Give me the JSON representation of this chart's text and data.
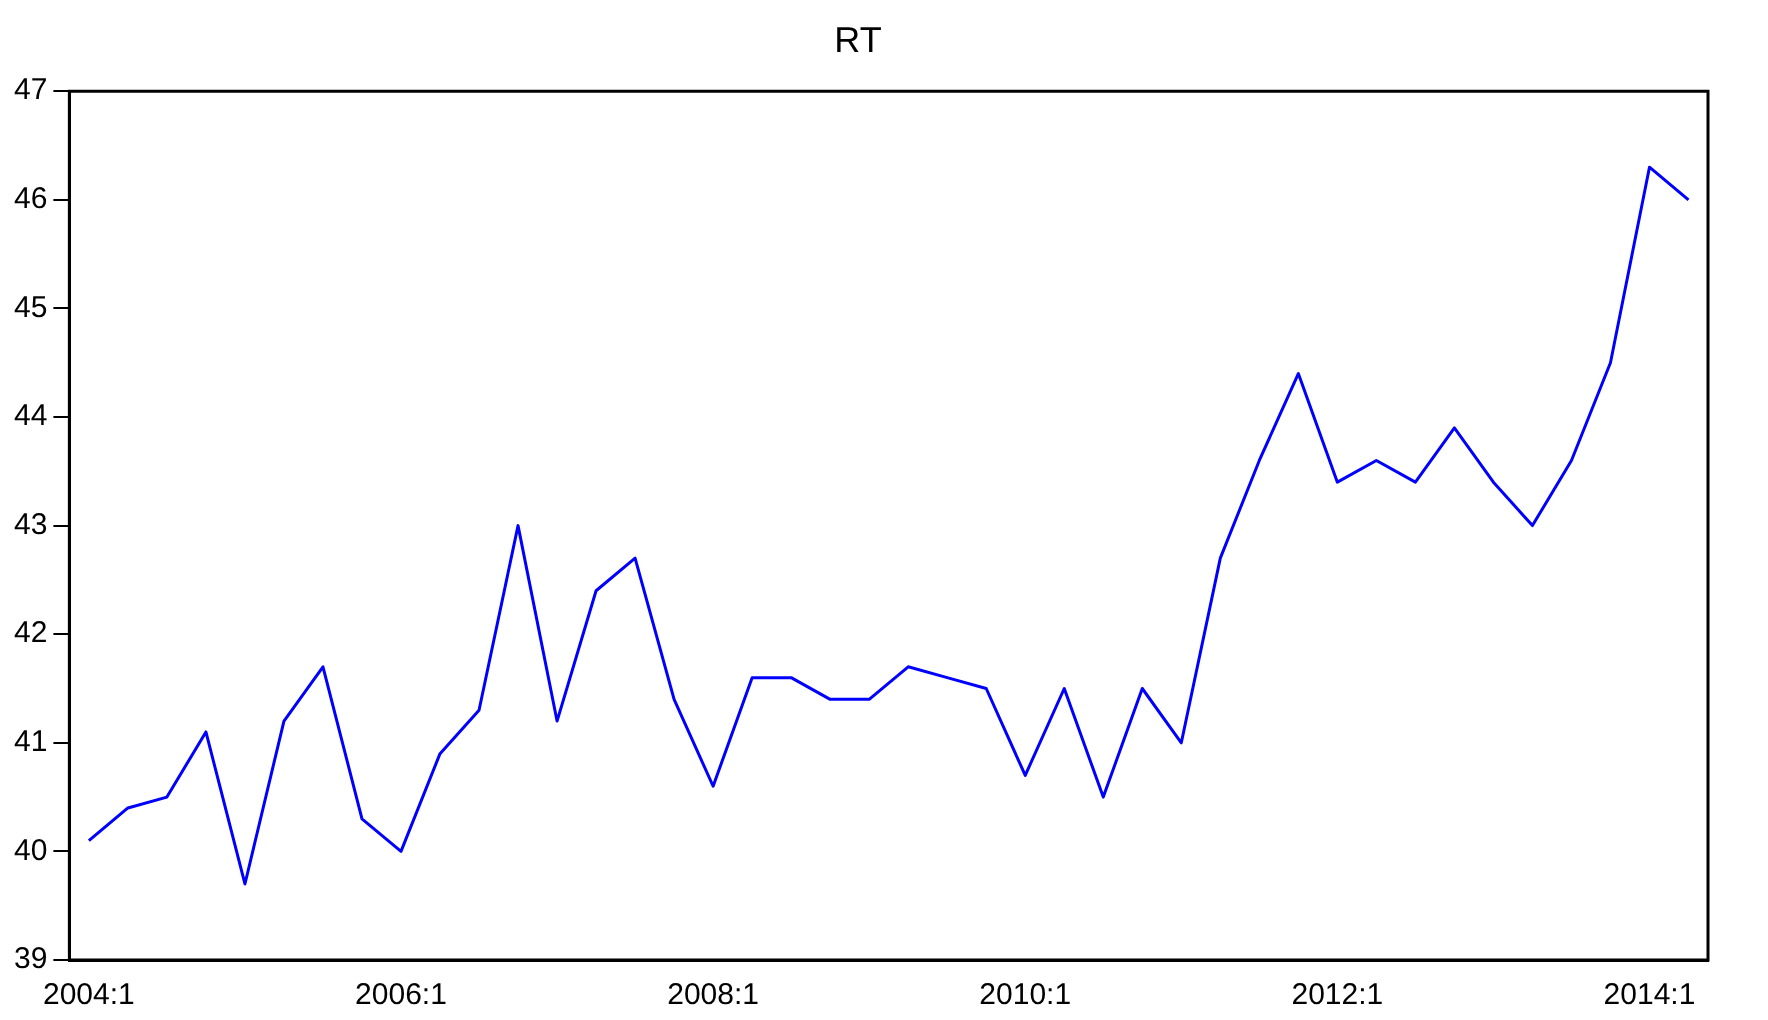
{
  "chart_data": {
    "type": "line",
    "title": "RT",
    "categories": [
      "2004:1",
      null,
      null,
      null,
      null,
      null,
      null,
      null,
      "2006:1",
      null,
      null,
      null,
      null,
      null,
      null,
      null,
      "2008:1",
      null,
      null,
      null,
      null,
      null,
      null,
      null,
      "2010:1",
      null,
      null,
      null,
      null,
      null,
      null,
      null,
      "2012:1",
      null,
      null,
      null,
      null,
      null,
      null,
      null,
      "2014:1",
      null
    ],
    "series": [
      {
        "color": "#0000ff",
        "values": [
          40.1,
          40.4,
          40.5,
          41.1,
          39.7,
          41.2,
          41.7,
          40.3,
          40.0,
          40.9,
          41.3,
          43.0,
          41.2,
          42.4,
          42.7,
          41.4,
          40.6,
          41.6,
          41.6,
          41.4,
          41.4,
          41.7,
          41.6,
          41.5,
          40.7,
          41.5,
          40.5,
          41.5,
          41.0,
          42.7,
          43.6,
          44.4,
          43.4,
          43.6,
          43.4,
          43.9,
          43.4,
          43.0,
          43.6,
          44.5,
          46.3,
          46.0
        ]
      }
    ],
    "ylim": [
      39,
      47
    ],
    "yticks": [
      39,
      40,
      41,
      42,
      43,
      44,
      45,
      46,
      47
    ],
    "grid": false,
    "legend": false,
    "marker": "none",
    "line_style": "solid"
  }
}
